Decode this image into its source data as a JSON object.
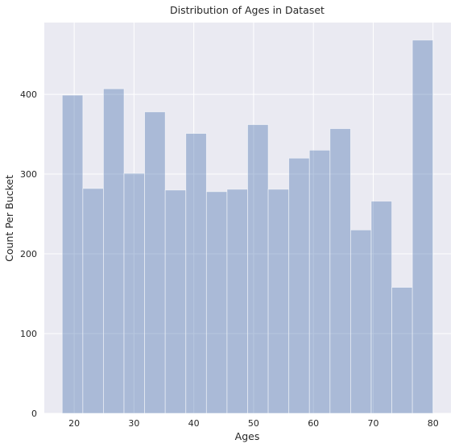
{
  "chart_data": {
    "type": "bar",
    "title": "Distribution of Ages in Dataset",
    "xlabel": "Ages",
    "ylabel": "Count Per Bucket",
    "bin_edges": [
      18,
      21.444,
      24.889,
      28.333,
      31.778,
      35.222,
      38.667,
      42.111,
      45.556,
      49,
      52.444,
      55.889,
      59.333,
      62.778,
      66.222,
      69.667,
      73.111,
      76.556,
      80
    ],
    "values": [
      399,
      282,
      407,
      301,
      378,
      280,
      351,
      278,
      281,
      362,
      281,
      320,
      330,
      357,
      230,
      266,
      158,
      468
    ],
    "xlim": [
      15,
      83
    ],
    "ylim": [
      0,
      490
    ],
    "xticks": [
      20,
      30,
      40,
      50,
      60,
      70,
      80
    ],
    "yticks": [
      0,
      100,
      200,
      300,
      400
    ],
    "grid": true,
    "colors": {
      "bar": "#4c72b0",
      "bar_alpha": 0.4,
      "background": "#eaeaf2",
      "grid": "#ffffff",
      "text": "#262626"
    }
  }
}
